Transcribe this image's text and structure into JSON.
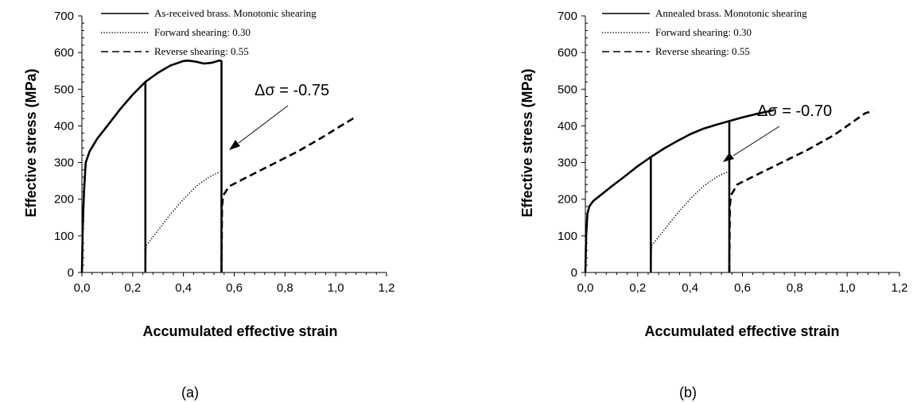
{
  "chart_data": [
    {
      "type": "line",
      "panel_label": "(a)",
      "xlabel": "Accumulated effective strain",
      "ylabel": "Effective stress (MPa)",
      "xlim": [
        0,
        1.2
      ],
      "ylim": [
        0,
        700
      ],
      "x_ticks": [
        "0,0",
        "0,2",
        "0,4",
        "0,6",
        "0,8",
        "1,0",
        "1,2"
      ],
      "y_ticks": [
        "0",
        "100",
        "200",
        "300",
        "400",
        "500",
        "600",
        "700"
      ],
      "grid": false,
      "legend_position": "top",
      "annotation": {
        "text": "Δσ = -0.75",
        "arrow_target": [
          0.55,
          330
        ]
      },
      "series": [
        {
          "name": "As-received brass. Monotonic shearing",
          "style": "solid",
          "segments": [
            [
              [
                0.0,
                0
              ],
              [
                0.003,
                120
              ],
              [
                0.008,
                220
              ],
              [
                0.015,
                300
              ],
              [
                0.03,
                330
              ],
              [
                0.06,
                365
              ],
              [
                0.1,
                400
              ],
              [
                0.15,
                445
              ],
              [
                0.2,
                485
              ],
              [
                0.25,
                520
              ],
              [
                0.3,
                545
              ],
              [
                0.35,
                565
              ],
              [
                0.4,
                577
              ],
              [
                0.42,
                578
              ],
              [
                0.45,
                575
              ],
              [
                0.48,
                570
              ],
              [
                0.51,
                572
              ],
              [
                0.54,
                578
              ],
              [
                0.55,
                578
              ]
            ],
            [
              [
                0.25,
                520
              ],
              [
                0.25,
                0
              ]
            ],
            [
              [
                0.55,
                578
              ],
              [
                0.55,
                0
              ]
            ]
          ]
        },
        {
          "name": "Forward shearing: 0.30",
          "style": "dotted",
          "segments": [
            [
              [
                0.25,
                0
              ],
              [
                0.252,
                60
              ],
              [
                0.255,
                75
              ],
              [
                0.3,
                115
              ],
              [
                0.35,
                160
              ],
              [
                0.4,
                200
              ],
              [
                0.45,
                235
              ],
              [
                0.5,
                260
              ],
              [
                0.545,
                275
              ]
            ]
          ]
        },
        {
          "name": "Reverse shearing: 0.55",
          "style": "dashed",
          "segments": [
            [
              [
                0.55,
                0
              ],
              [
                0.552,
                180
              ],
              [
                0.556,
                210
              ],
              [
                0.58,
                235
              ],
              [
                0.65,
                260
              ],
              [
                0.75,
                295
              ],
              [
                0.85,
                330
              ],
              [
                0.95,
                370
              ],
              [
                1.02,
                400
              ],
              [
                1.08,
                425
              ]
            ]
          ]
        }
      ]
    },
    {
      "type": "line",
      "panel_label": "(b)",
      "xlabel": "Accumulated effective strain",
      "ylabel": "Effective stress (MPa)",
      "xlim": [
        0,
        1.2
      ],
      "ylim": [
        0,
        700
      ],
      "x_ticks": [
        "0,0",
        "0,2",
        "0,4",
        "0,6",
        "0,8",
        "1,0",
        "1,2"
      ],
      "y_ticks": [
        "0",
        "100",
        "200",
        "300",
        "400",
        "500",
        "600",
        "700"
      ],
      "grid": false,
      "legend_position": "top",
      "annotation": {
        "text": "Δσ = -0.70",
        "arrow_target": [
          0.56,
          360
        ]
      },
      "series": [
        {
          "name": "Annealed brass. Monotonic shearing",
          "style": "solid",
          "segments": [
            [
              [
                0.0,
                0
              ],
              [
                0.003,
                100
              ],
              [
                0.008,
                160
              ],
              [
                0.015,
                180
              ],
              [
                0.03,
                195
              ],
              [
                0.06,
                212
              ],
              [
                0.1,
                235
              ],
              [
                0.15,
                262
              ],
              [
                0.2,
                290
              ],
              [
                0.25,
                315
              ],
              [
                0.3,
                338
              ],
              [
                0.35,
                358
              ],
              [
                0.4,
                377
              ],
              [
                0.45,
                392
              ],
              [
                0.5,
                403
              ],
              [
                0.55,
                413
              ],
              [
                0.6,
                423
              ],
              [
                0.65,
                432
              ],
              [
                0.72,
                443
              ]
            ],
            [
              [
                0.25,
                315
              ],
              [
                0.25,
                0
              ]
            ],
            [
              [
                0.55,
                413
              ],
              [
                0.55,
                0
              ]
            ]
          ]
        },
        {
          "name": "Forward shearing: 0.30",
          "style": "dotted",
          "segments": [
            [
              [
                0.25,
                0
              ],
              [
                0.252,
                60
              ],
              [
                0.255,
                75
              ],
              [
                0.3,
                115
              ],
              [
                0.35,
                160
              ],
              [
                0.4,
                200
              ],
              [
                0.45,
                235
              ],
              [
                0.5,
                260
              ],
              [
                0.545,
                275
              ]
            ]
          ]
        },
        {
          "name": "Reverse shearing: 0.55",
          "style": "dashed",
          "segments": [
            [
              [
                0.55,
                0
              ],
              [
                0.552,
                180
              ],
              [
                0.556,
                210
              ],
              [
                0.58,
                240
              ],
              [
                0.65,
                265
              ],
              [
                0.75,
                300
              ],
              [
                0.85,
                335
              ],
              [
                0.95,
                375
              ],
              [
                1.02,
                410
              ],
              [
                1.07,
                435
              ],
              [
                1.1,
                440
              ]
            ]
          ]
        }
      ]
    }
  ]
}
